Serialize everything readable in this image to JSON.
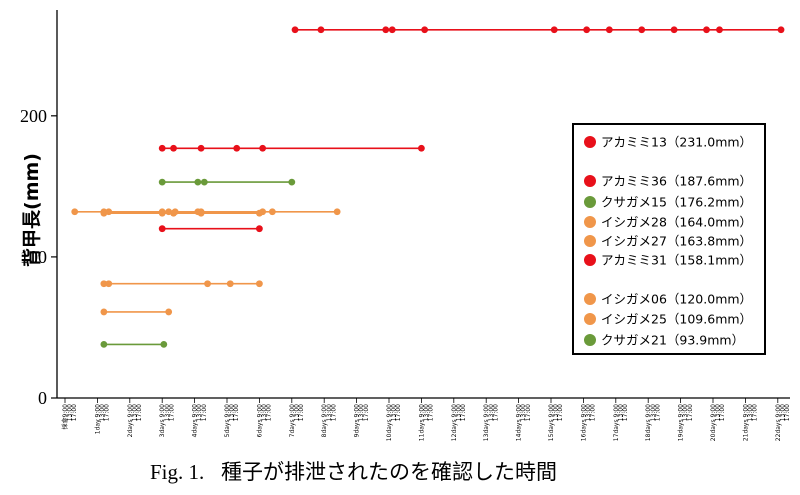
{
  "chart_data": {
    "type": "line",
    "ylabel": "背甲長(mm)",
    "ylim": [
      0,
      275
    ],
    "y_ticks": [
      0,
      100,
      200
    ],
    "x_tick_labels": [
      "採食9:00",
      "13:00",
      "17:00",
      "1day 9:00",
      "13:00",
      "17:00",
      "2days 9:00",
      "13:00",
      "17:00",
      "3days 9:00",
      "13:00",
      "17:00",
      "4days 9:00",
      "13:00",
      "17:00",
      "5days 9:00",
      "13:00",
      "17:00",
      "6days 9:00",
      "13:00",
      "17:00",
      "7days 9:00",
      "13:00",
      "17:00",
      "8days 9:00",
      "13:00",
      "17:00",
      "9days 9:00",
      "13:00",
      "17:00",
      "10days 9:00",
      "13:00",
      "17:00",
      "11days 9:00",
      "13:00",
      "17:00",
      "12days 9:00",
      "13:00",
      "17:00",
      "13days 9:00",
      "13:00",
      "17:00",
      "14days 9:00",
      "13:00",
      "17:00",
      "15days 9:00",
      "13:00",
      "17:00",
      "16days 9:00",
      "13:00",
      "17:00",
      "17days 9:00",
      "13:00",
      "17:00",
      "18days 9:00",
      "13:00",
      "17:00",
      "19days 9:00",
      "13:00",
      "17:00",
      "20days 9:00",
      "13:00",
      "17:00",
      "21days 9:00",
      "13:00",
      "17:00",
      "22days 9:00",
      "13:00",
      "17:00"
    ],
    "series": [
      {
        "name": "アカミミ13（231.0mm）",
        "color": "#e8101a",
        "y": 261,
        "x": [
          7.1,
          7.9,
          9.9,
          10.1,
          11.1,
          15.1,
          16.1,
          16.8,
          17.8,
          18.8,
          19.8,
          20.2,
          22.1
        ]
      },
      {
        "name": "アカミミ36（187.6mm）",
        "color": "#e8101a",
        "y": 177,
        "x": [
          3.0,
          3.35,
          4.2,
          5.3,
          6.1,
          11.0
        ]
      },
      {
        "name": "クサガメ15（176.2mm）",
        "color": "#6a9a3a",
        "y": 153,
        "x": [
          3.0,
          4.1,
          4.3,
          7.0
        ]
      },
      {
        "name": "イシガメ28（164.0mm）",
        "color": "#f0964a",
        "y": 132,
        "x": [
          0.3,
          1.2,
          1.35,
          3.0,
          3.2,
          3.4,
          4.1,
          4.2,
          6.1,
          6.4,
          8.4
        ]
      },
      {
        "name": "イシガメ27（163.8mm）",
        "color": "#f0964a",
        "y": 131,
        "x": [
          1.2,
          3.0,
          3.35,
          4.2,
          6.0
        ]
      },
      {
        "name": "アカミミ31（158.1mm）",
        "color": "#e8101a",
        "y": 120,
        "x": [
          3.0,
          6.0
        ]
      },
      {
        "name": "イシガメ06（120.0mm）",
        "color": "#f0964a",
        "y": 81,
        "x": [
          1.2,
          1.35,
          4.4,
          5.1,
          6.0
        ]
      },
      {
        "name": "イシガメ25（109.6mm）",
        "color": "#f0964a",
        "y": 61,
        "x": [
          1.2,
          3.2
        ]
      },
      {
        "name": "クサガメ21（93.9mm）",
        "color": "#6a9a3a",
        "y": 38,
        "x": [
          1.2,
          3.05
        ]
      }
    ],
    "legend_position": "right",
    "grid": false
  },
  "caption": {
    "label": "Fig. 1.",
    "text": "種子が排泄されたのを確認した時間"
  }
}
